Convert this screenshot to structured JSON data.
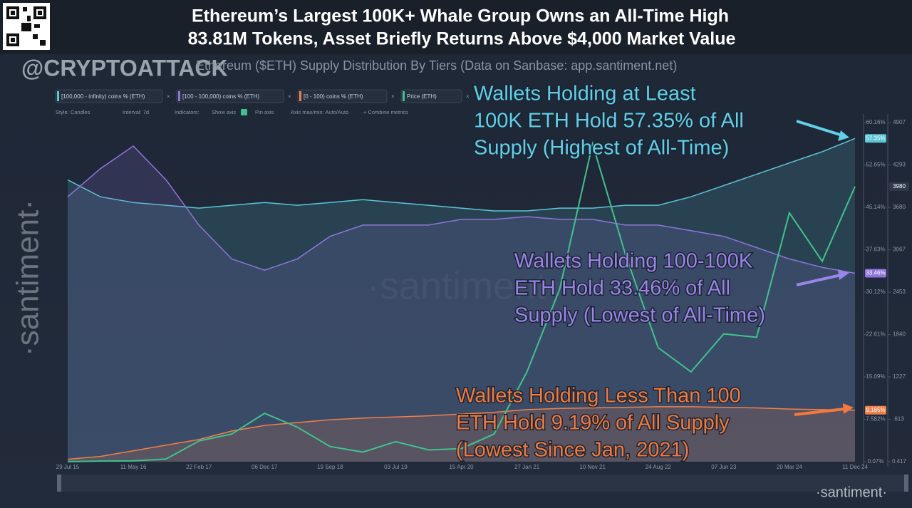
{
  "chart_data": {
    "type": "area",
    "title": [
      "Ethereum’s Largest 100K+ Whale Group Owns an All-Time High",
      "83.81M Tokens, Asset Briefly Returns Above $4,000 Market Value"
    ],
    "watermark": "@CRYPTOATTACK",
    "subtitle": "Ethereum ($ETH) Supply Distribution By Tiers (Data on Sanbase: app.santiment.net)",
    "brand": "·santiment·",
    "toolbar": [
      "Style: Candles",
      "Interval: 7d",
      "Indicators:",
      "Show axis",
      "Pin axis",
      "Axis max/min: Auto/Auto",
      "+ Combine metrics"
    ],
    "categories": [
      "29 Jul 15",
      null,
      "11 May 16",
      null,
      "22 Feb 17",
      null,
      "06 Dec 17",
      null,
      "19 Sep 18",
      null,
      "03 Jul 19",
      null,
      "15 Apr 20",
      null,
      "27 Jan 21",
      null,
      "10 Nov 21",
      null,
      "24 Aug 22",
      null,
      "07 Jun 23",
      null,
      "20 Mar 24",
      null,
      "11 Dec 24"
    ],
    "series": [
      {
        "name": "[100,000 - infinity) coins % (ETH)",
        "color": "#5cc6d6",
        "values": [
          50,
          47,
          46,
          45.5,
          45,
          45.5,
          46,
          45.5,
          46,
          46.5,
          46,
          45.5,
          45,
          44.5,
          44.5,
          45,
          45,
          45.5,
          45.5,
          47,
          49,
          51,
          53,
          55,
          57.35
        ],
        "value_labels": [
          null,
          null,
          null,
          null,
          null,
          null,
          null,
          null,
          null,
          null,
          null,
          null,
          null,
          null,
          null,
          null,
          null,
          null,
          null,
          null,
          null,
          null,
          null,
          null,
          "57.35%"
        ]
      },
      {
        "name": "[100 - 100,000) coins % (ETH)",
        "color": "#8f74dc",
        "values": [
          47,
          52,
          56,
          50,
          42,
          36,
          34,
          36,
          40,
          42,
          42,
          42,
          43,
          43,
          43.5,
          43,
          43,
          42,
          42,
          41,
          40,
          38,
          36,
          34.5,
          33.46
        ],
        "value_labels": [
          null,
          null,
          null,
          null,
          null,
          null,
          null,
          null,
          null,
          null,
          null,
          null,
          null,
          null,
          null,
          null,
          null,
          null,
          null,
          null,
          null,
          null,
          null,
          null,
          "33.46%"
        ]
      },
      {
        "name": "[0 - 100) coins % (ETH)",
        "color": "#f0804a",
        "values": [
          0.5,
          1,
          2,
          3,
          4,
          5.5,
          6.5,
          7,
          7.5,
          7.8,
          8,
          8.2,
          8.5,
          8.8,
          9.3,
          9.5,
          9.6,
          9.7,
          9.8,
          9.8,
          9.7,
          9.6,
          9.4,
          9.3,
          9.185
        ],
        "value_labels": [
          null,
          null,
          null,
          null,
          null,
          null,
          null,
          null,
          null,
          null,
          null,
          null,
          null,
          null,
          null,
          null,
          null,
          null,
          null,
          null,
          null,
          null,
          null,
          null,
          "9.185%"
        ]
      },
      {
        "name": "Price (ETH)",
        "color": "#3fc38e",
        "axis": "y2",
        "values": [
          1,
          10,
          12,
          40,
          300,
          400,
          700,
          500,
          220,
          140,
          290,
          170,
          190,
          400,
          1300,
          2500,
          4600,
          3000,
          1650,
          1300,
          1850,
          1800,
          3600,
          2900,
          3980
        ]
      }
    ],
    "ylim": [
      0.07,
      60.16
    ],
    "yticks": [
      {
        "value": 60.16,
        "label": "60.16%"
      },
      {
        "value": 52.65,
        "label": "52.65%"
      },
      {
        "value": 45.14,
        "label": "45.14%"
      },
      {
        "value": 37.63,
        "label": "37.63%"
      },
      {
        "value": 30.12,
        "label": "30.12%"
      },
      {
        "value": 22.61,
        "label": "22.61%"
      },
      {
        "value": 15.09,
        "label": "15.09%"
      },
      {
        "value": 7.582,
        "label": "7.582%"
      },
      {
        "value": 0.07,
        "label": "0.07%"
      }
    ],
    "y2lim": [
      0.417,
      4907
    ],
    "y2ticks": [
      4907,
      4293,
      3680,
      3067,
      2453,
      1840,
      1227,
      613,
      0.417
    ],
    "annotations": [
      {
        "lines": [
          "Wallets Holding at Least",
          "100K ETH Hold 57.35% of All",
          "Supply (Highest of All-Time)"
        ],
        "color": "#5fd0e8"
      },
      {
        "lines": [
          "Wallets Holding 100-100K",
          "ETH Hold 33.46% of All",
          "Supply (Lowest of All-Time)"
        ],
        "color": "#9b84ea"
      },
      {
        "lines": [
          "Wallets Holding Less Than 100",
          "ETH Hold 9.19% of All Supply",
          "(Lowest Since Jan, 2021)"
        ],
        "color": "#f27a3e"
      }
    ]
  }
}
